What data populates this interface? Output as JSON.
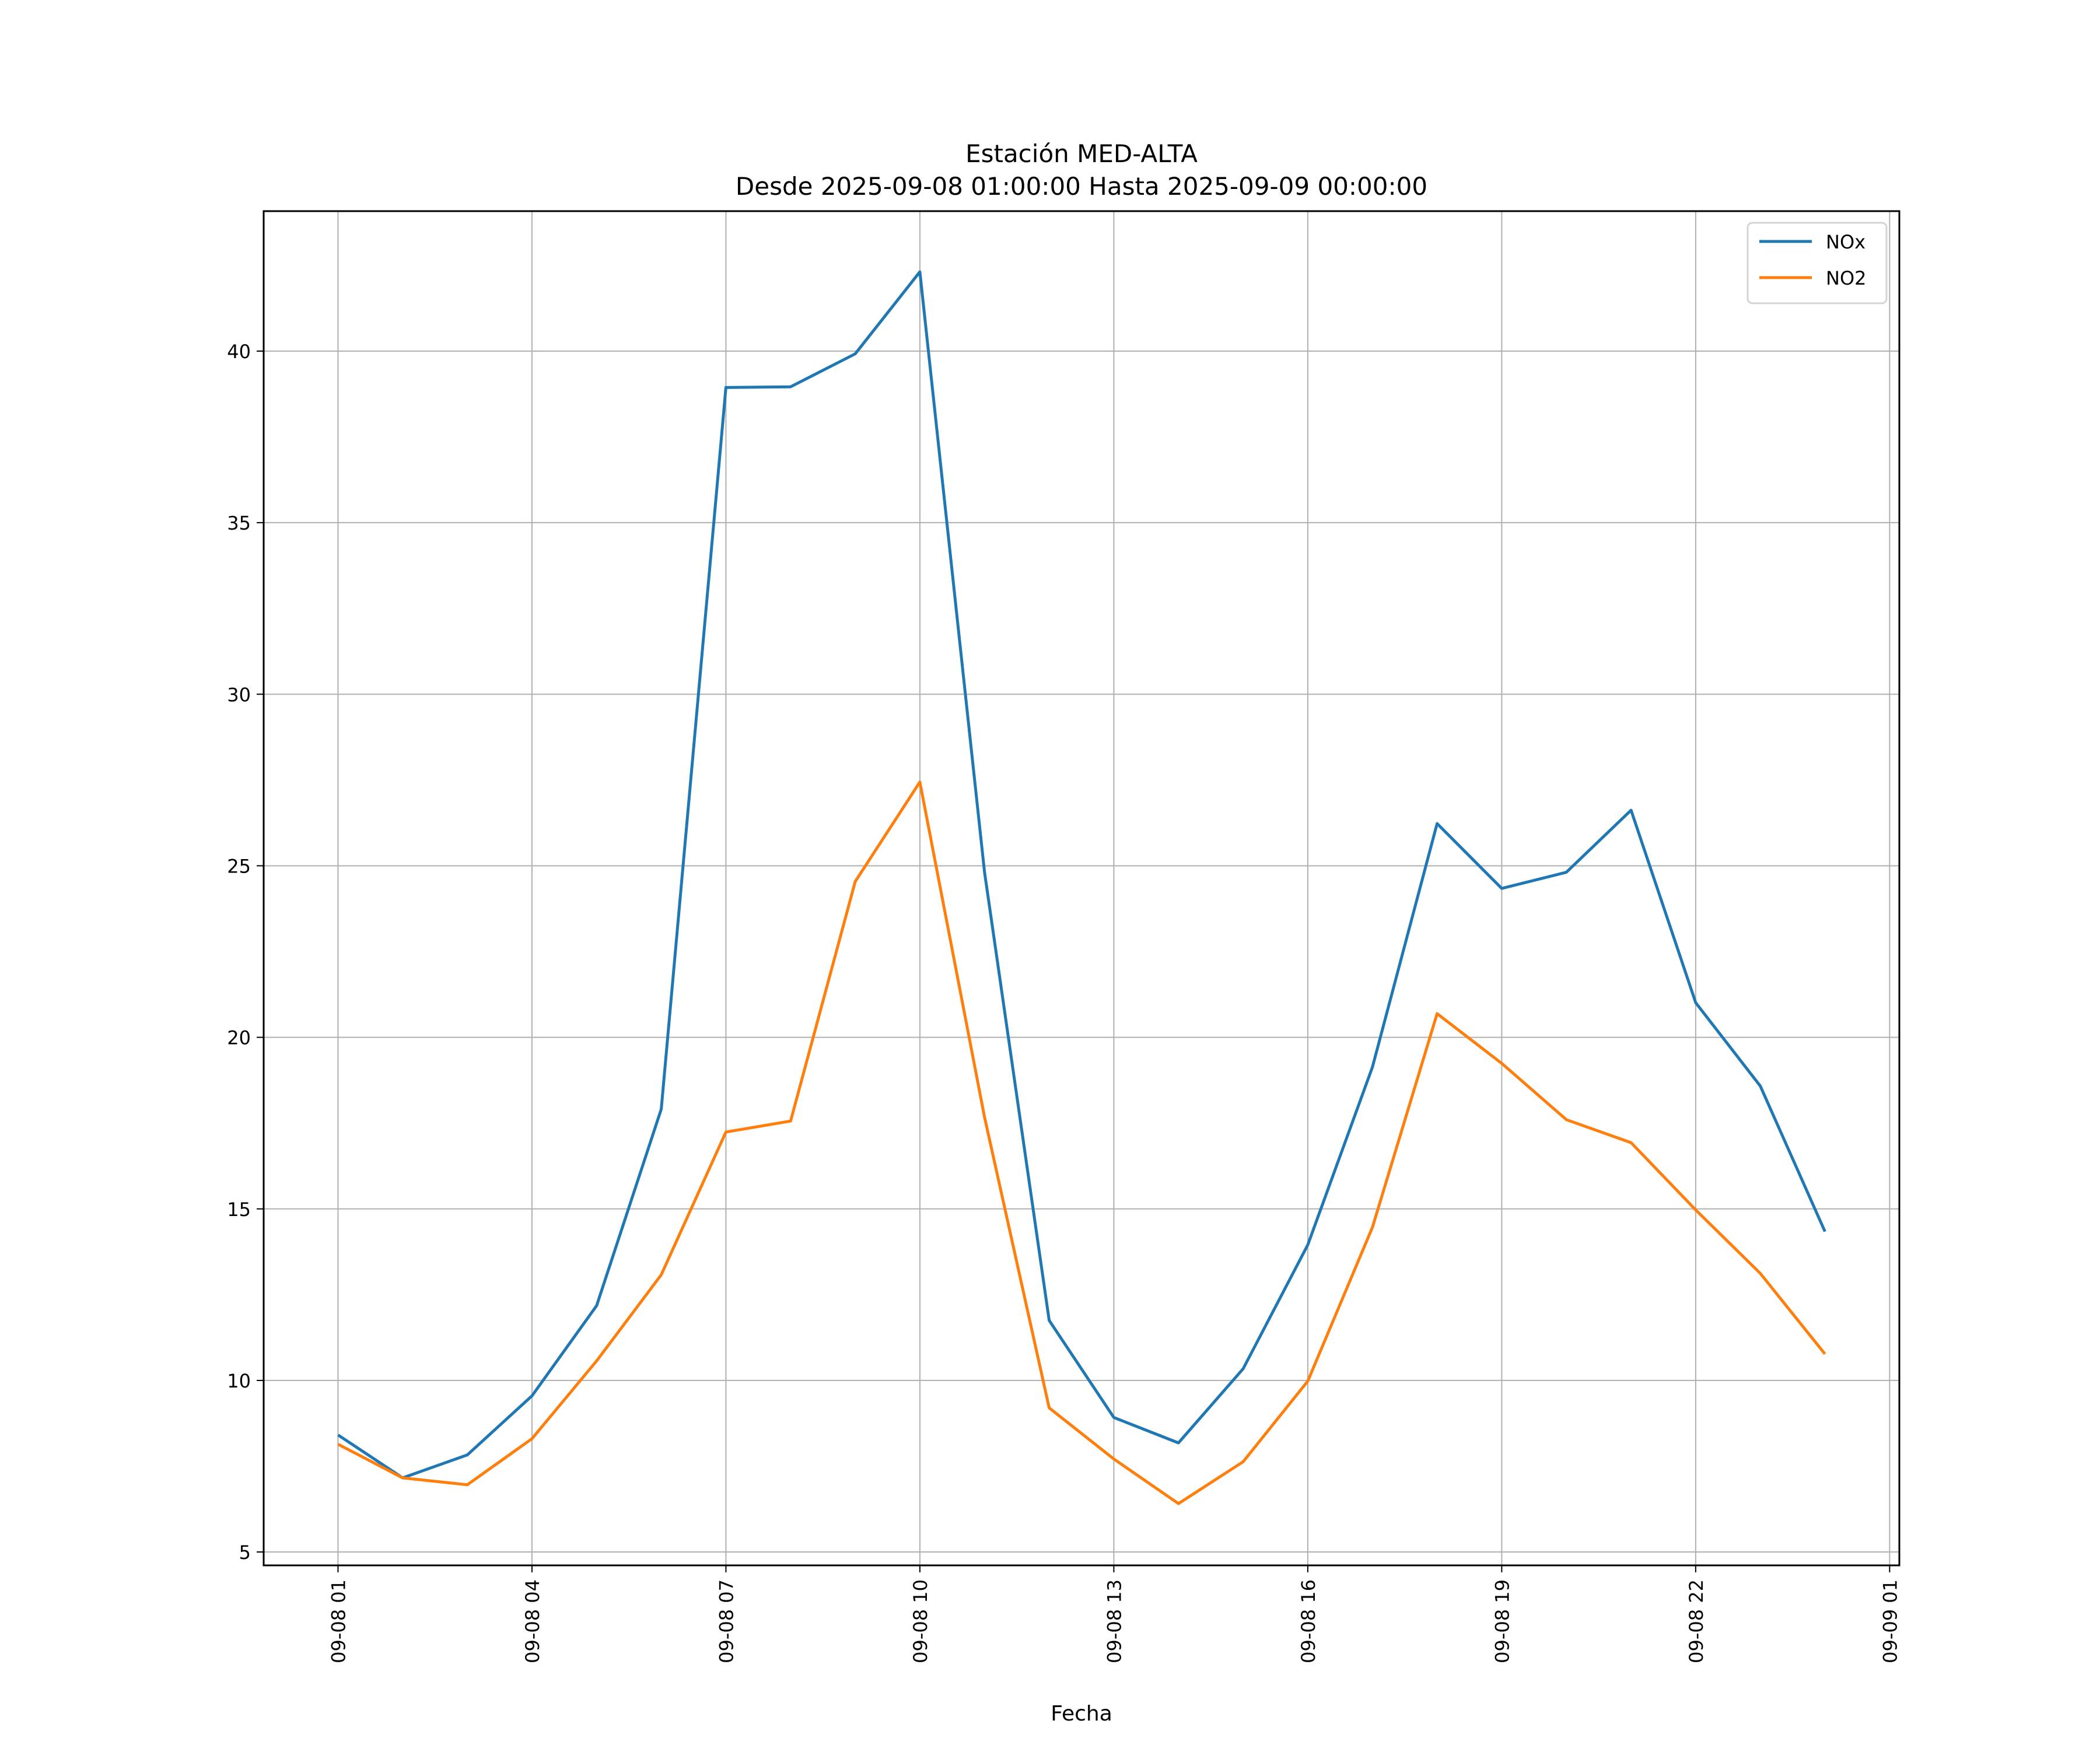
{
  "chart_data": {
    "type": "line",
    "title_line1": "Estación MED-ALTA",
    "title_line2": "Desde 2025-09-08 01:00:00 Hasta 2025-09-09 00:00:00",
    "xlabel": "Fecha",
    "ylabel": "",
    "x": [
      "2025-09-08 01:00",
      "2025-09-08 02:00",
      "2025-09-08 03:00",
      "2025-09-08 04:00",
      "2025-09-08 05:00",
      "2025-09-08 06:00",
      "2025-09-08 07:00",
      "2025-09-08 08:00",
      "2025-09-08 09:00",
      "2025-09-08 10:00",
      "2025-09-08 11:00",
      "2025-09-08 12:00",
      "2025-09-08 13:00",
      "2025-09-08 14:00",
      "2025-09-08 15:00",
      "2025-09-08 16:00",
      "2025-09-08 17:00",
      "2025-09-08 18:00",
      "2025-09-08 19:00",
      "2025-09-08 20:00",
      "2025-09-08 21:00",
      "2025-09-08 22:00",
      "2025-09-08 23:00",
      "2025-09-09 00:00"
    ],
    "series": [
      {
        "name": "NOx",
        "color": "#1f77b4",
        "values": [
          8.41,
          7.16,
          7.83,
          9.55,
          12.18,
          17.91,
          38.94,
          38.96,
          39.92,
          42.31,
          24.81,
          11.75,
          8.92,
          8.18,
          10.34,
          13.95,
          19.13,
          26.23,
          24.34,
          24.81,
          26.62,
          21.01,
          18.58,
          14.34
        ]
      },
      {
        "name": "NO2",
        "color": "#ff7f0e",
        "values": [
          8.14,
          7.16,
          6.96,
          8.3,
          10.57,
          13.08,
          17.24,
          17.56,
          24.54,
          27.44,
          17.67,
          9.2,
          7.71,
          6.41,
          7.63,
          9.98,
          14.46,
          20.69,
          19.24,
          17.6,
          16.93,
          14.97,
          13.12,
          10.77
        ]
      }
    ],
    "xlim": [
      "2025-09-07 23:51",
      "2025-09-09 01:09"
    ],
    "ylim": [
      4.61,
      44.08
    ],
    "yticks": [
      5,
      10,
      15,
      20,
      25,
      30,
      35,
      40
    ],
    "xticks": [
      {
        "value": "2025-09-08 01:00",
        "label": "09-08 01"
      },
      {
        "value": "2025-09-08 04:00",
        "label": "09-08 04"
      },
      {
        "value": "2025-09-08 07:00",
        "label": "09-08 07"
      },
      {
        "value": "2025-09-08 10:00",
        "label": "09-08 10"
      },
      {
        "value": "2025-09-08 13:00",
        "label": "09-08 13"
      },
      {
        "value": "2025-09-08 16:00",
        "label": "09-08 16"
      },
      {
        "value": "2025-09-08 19:00",
        "label": "09-08 19"
      },
      {
        "value": "2025-09-08 22:00",
        "label": "09-08 22"
      },
      {
        "value": "2025-09-09 01:00",
        "label": "09-09 01"
      }
    ],
    "grid": true,
    "legend_position": "top-right"
  }
}
